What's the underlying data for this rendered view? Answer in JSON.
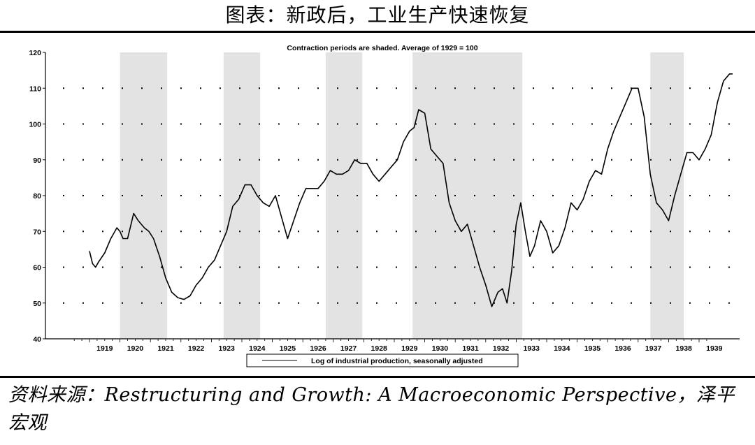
{
  "figure_title": "图表：新政后，工业生产快速恢复",
  "source_note": "资料来源：Restructuring and Growth: A Macroeconomic Perspective，泽平宏观",
  "chart_data": {
    "type": "line",
    "title": "Contraction periods are shaded. Average of 1929 = 100",
    "legend_label": "Log of industrial production, seasonally adjusted",
    "legend_position": "bottom",
    "ylim": [
      40,
      120
    ],
    "yticks": [
      40,
      50,
      60,
      70,
      80,
      90,
      100,
      110,
      120
    ],
    "xlim": [
      1918,
      1941
    ],
    "xtick_labels": [
      "1919",
      "1920",
      "1921",
      "1922",
      "1923",
      "1924",
      "1925",
      "1926",
      "1927",
      "1928",
      "1929",
      "1930",
      "1931",
      "1932",
      "1933",
      "1934",
      "1935",
      "1936",
      "1937",
      "1938",
      "1939"
    ],
    "grid": "dotted-horizontal",
    "shade_color": "#e3e3e3",
    "line_color": "#000000",
    "contractions": [
      [
        1920.0,
        1921.55
      ],
      [
        1923.4,
        1924.6
      ],
      [
        1926.75,
        1927.95
      ],
      [
        1929.6,
        1933.2
      ],
      [
        1937.4,
        1938.5
      ]
    ],
    "series": [
      {
        "x": [
          1919.0,
          1919.1,
          1919.2,
          1919.3,
          1919.5,
          1919.7,
          1919.9,
          1920.0,
          1920.1,
          1920.25,
          1920.45,
          1920.6,
          1920.8,
          1920.95,
          1921.1,
          1921.3,
          1921.5,
          1921.7,
          1921.9,
          1922.1,
          1922.3,
          1922.5,
          1922.7,
          1922.9,
          1923.1,
          1923.3,
          1923.5,
          1923.7,
          1923.9,
          1924.1,
          1924.3,
          1924.5,
          1924.7,
          1924.9,
          1925.1,
          1925.3,
          1925.5,
          1925.7,
          1925.9,
          1926.1,
          1926.3,
          1926.5,
          1926.7,
          1926.9,
          1927.1,
          1927.3,
          1927.5,
          1927.7,
          1927.9,
          1928.1,
          1928.3,
          1928.5,
          1928.7,
          1928.9,
          1929.1,
          1929.3,
          1929.5,
          1929.65,
          1929.8,
          1930.0,
          1930.2,
          1930.4,
          1930.6,
          1930.8,
          1931.0,
          1931.2,
          1931.4,
          1931.6,
          1931.8,
          1932.0,
          1932.2,
          1932.4,
          1932.55,
          1932.7,
          1932.85,
          1933.0,
          1933.15,
          1933.3,
          1933.45,
          1933.6,
          1933.8,
          1934.0,
          1934.2,
          1934.4,
          1934.6,
          1934.8,
          1935.0,
          1935.2,
          1935.4,
          1935.6,
          1935.8,
          1936.0,
          1936.2,
          1936.4,
          1936.6,
          1936.8,
          1937.0,
          1937.2,
          1937.4,
          1937.6,
          1937.8,
          1938.0,
          1938.2,
          1938.4,
          1938.6,
          1938.8,
          1939.0,
          1939.2,
          1939.4,
          1939.6,
          1939.8,
          1940.0,
          1940.1
        ],
        "y": [
          64.5,
          61,
          60,
          61.5,
          64,
          68,
          71,
          70,
          68,
          68,
          75,
          73,
          71,
          70,
          68,
          63,
          57,
          53,
          51.5,
          51,
          52,
          55,
          57,
          60,
          62,
          66,
          70,
          77,
          79,
          83,
          83,
          80,
          78,
          77,
          80,
          74,
          68,
          73,
          78,
          82,
          82,
          82,
          84,
          87,
          86,
          86,
          87,
          90,
          89,
          89,
          86,
          84,
          86,
          88,
          90,
          95,
          98,
          99,
          104,
          103,
          93,
          91,
          89,
          78,
          73,
          70,
          72,
          66,
          60,
          55,
          49,
          53,
          54,
          50,
          59,
          72,
          78,
          70,
          63,
          66,
          73,
          70,
          64,
          66,
          71,
          78,
          76,
          79,
          84,
          87,
          86,
          93,
          98,
          102,
          106,
          110,
          110,
          102,
          86,
          78,
          76,
          73,
          80,
          86,
          92,
          92,
          90,
          93,
          97,
          106,
          112,
          114,
          114
        ]
      }
    ]
  }
}
